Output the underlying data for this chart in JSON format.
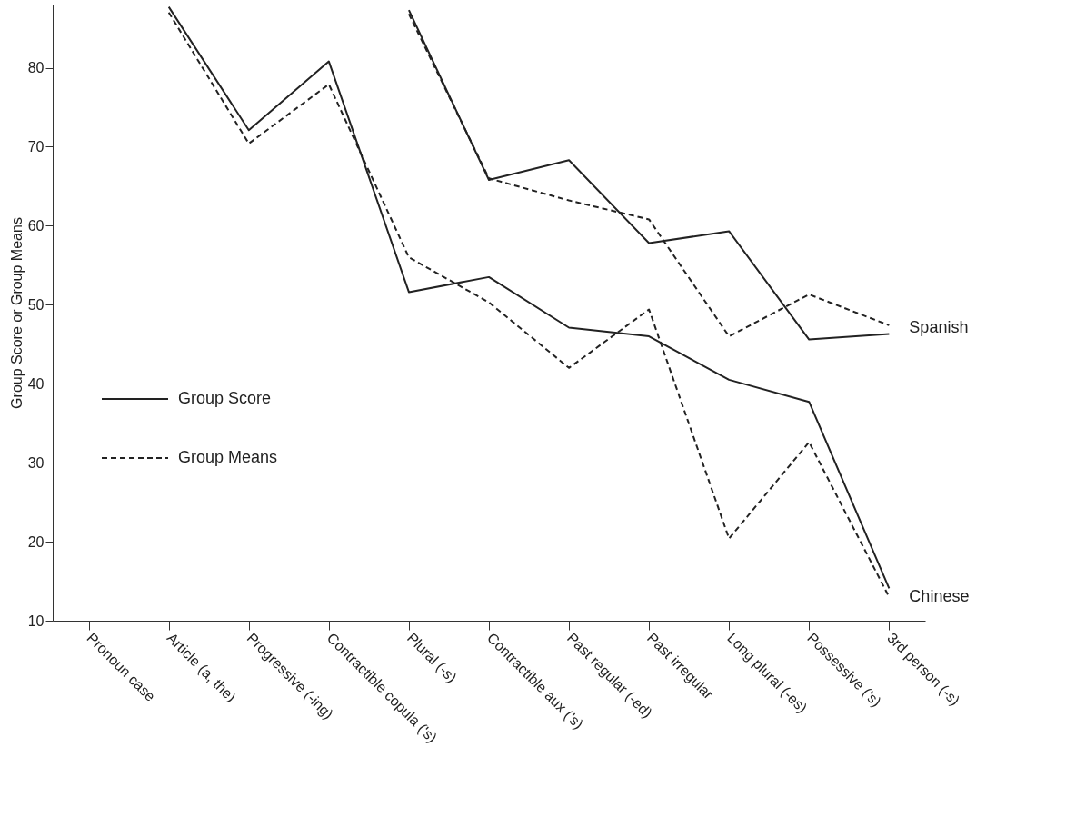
{
  "chart_data": {
    "type": "line",
    "ylabel": "Group Score or Group Means",
    "categories": [
      "Pronoun case",
      "Article (a, the)",
      "Progressive (-ing)",
      "Contractible copula ('s)",
      "Plural (-s)",
      "Contractible aux ('s)",
      "Past regular (-ed)",
      "Past irregular",
      "Long plural (-es)",
      "Possessive ('s)",
      "3rd person (-s)"
    ],
    "ylim": [
      10,
      88
    ],
    "yticks": [
      10,
      20,
      30,
      40,
      50,
      60,
      70,
      80
    ],
    "grid": false,
    "legend": "left",
    "marker": "none",
    "series": [
      {
        "name": "Group Score",
        "color": "#222222",
        "line_style": "solid",
        "values": [
          null,
          null,
          null,
          null,
          87.3,
          65.8,
          68.3,
          57.8,
          59.3,
          45.6,
          46.3
        ]
      },
      {
        "name": "Group Means",
        "color": "#222222",
        "line_style": "dashed",
        "values": [
          null,
          null,
          null,
          null,
          86.8,
          66.0,
          63.2,
          60.8,
          46.0,
          51.3,
          47.4
        ]
      },
      {
        "color": "#222222",
        "line_style": "solid",
        "values": [
          null,
          87.7,
          72.1,
          80.8,
          51.6,
          53.5,
          47.1,
          46.0,
          40.5,
          37.7,
          14.1
        ]
      },
      {
        "color": "#222222",
        "line_style": "dashed",
        "values": [
          null,
          87.0,
          70.4,
          77.9,
          56.0,
          50.3,
          42.0,
          49.4,
          20.4,
          32.6,
          13.0
        ]
      }
    ],
    "annotations": [
      {
        "text": "Spanish",
        "x": "3rd person (-s)",
        "y": 47
      },
      {
        "text": "Chinese",
        "x": "3rd person (-s)",
        "y": 13
      }
    ]
  }
}
